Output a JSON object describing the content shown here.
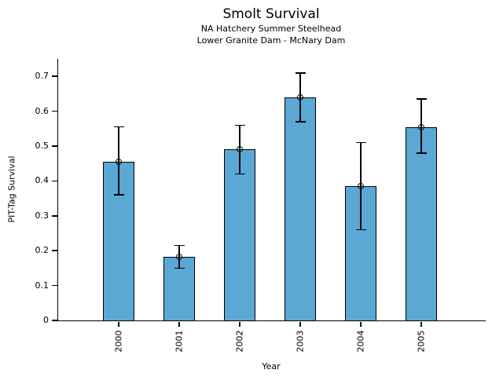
{
  "chart_data": {
    "type": "bar",
    "title": "Smolt Survival",
    "subtitle1": "NA Hatchery Summer Steelhead",
    "subtitle2": "Lower Granite Dam - McNary Dam",
    "xlabel": "Year",
    "ylabel": "PIT-Tag Survival",
    "categories": [
      "2000",
      "2001",
      "2002",
      "2003",
      "2004",
      "2005"
    ],
    "values": [
      0.455,
      0.182,
      0.49,
      0.64,
      0.385,
      0.555
    ],
    "error_low": [
      0.36,
      0.15,
      0.42,
      0.57,
      0.26,
      0.48
    ],
    "error_high": [
      0.555,
      0.215,
      0.56,
      0.71,
      0.51,
      0.635
    ],
    "ylim": [
      0,
      0.75
    ],
    "yticks": [
      0,
      0.1,
      0.2,
      0.3,
      0.4,
      0.5,
      0.6,
      0.7
    ],
    "ytick_labels": [
      "0",
      "0.1",
      "0.2",
      "0.3",
      "0.4",
      "0.5",
      "0.6",
      "0.7"
    ],
    "bar_color": "#5BA8D5",
    "bar_edge_color": "#000000",
    "error_color": "#000000",
    "marker": "open-circle",
    "grid": false,
    "legend": "none",
    "background": "#FFFFFF"
  }
}
